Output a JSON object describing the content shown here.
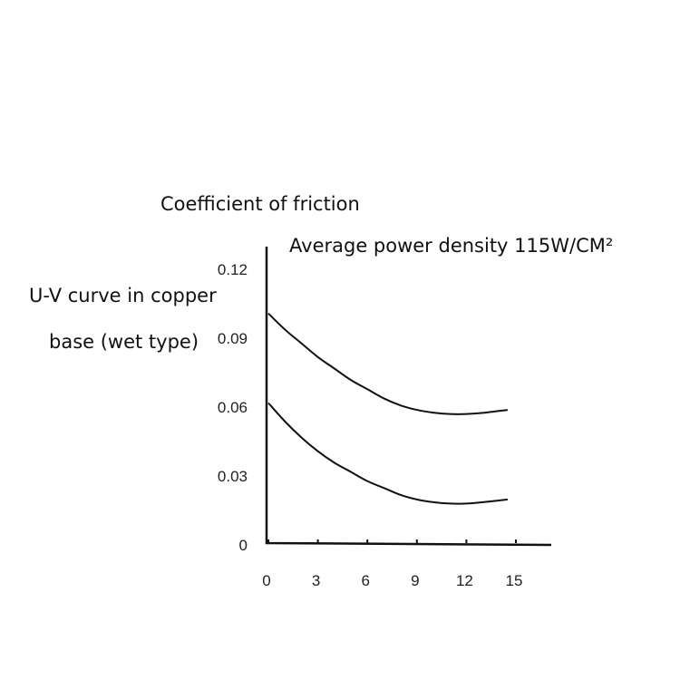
{
  "chart_data": {
    "type": "line",
    "title": "Coefficient of friction",
    "annotation": "Average power density 115W/CM²",
    "side_label_line1": "U-V curve in copper",
    "side_label_line2": "base (wet type)",
    "x_ticks": [
      "0",
      "3",
      "6",
      "9",
      "12",
      "15"
    ],
    "y_ticks": [
      "0",
      "0.03",
      "0.06",
      "0.09",
      "0.12"
    ],
    "xlim": [
      0,
      17
    ],
    "ylim": [
      0,
      0.12
    ],
    "grid": false,
    "colors": {
      "line": "#111111",
      "axis": "#111111"
    },
    "series": [
      {
        "x": [
          0,
          1,
          2,
          3,
          4,
          5,
          6,
          7,
          8,
          9,
          10,
          11,
          12,
          13,
          14.5
        ],
        "values": [
          0.1,
          0.093,
          0.087,
          0.081,
          0.076,
          0.071,
          0.067,
          0.063,
          0.06,
          0.058,
          0.0568,
          0.0562,
          0.0562,
          0.0567,
          0.058
        ]
      },
      {
        "x": [
          0,
          1,
          2,
          3,
          4,
          5,
          6,
          7,
          8,
          9,
          10,
          11,
          12,
          13,
          14.5
        ],
        "values": [
          0.061,
          0.053,
          0.046,
          0.04,
          0.035,
          0.031,
          0.027,
          0.024,
          0.021,
          0.019,
          0.0178,
          0.0172,
          0.0172,
          0.0178,
          0.019
        ]
      }
    ]
  }
}
